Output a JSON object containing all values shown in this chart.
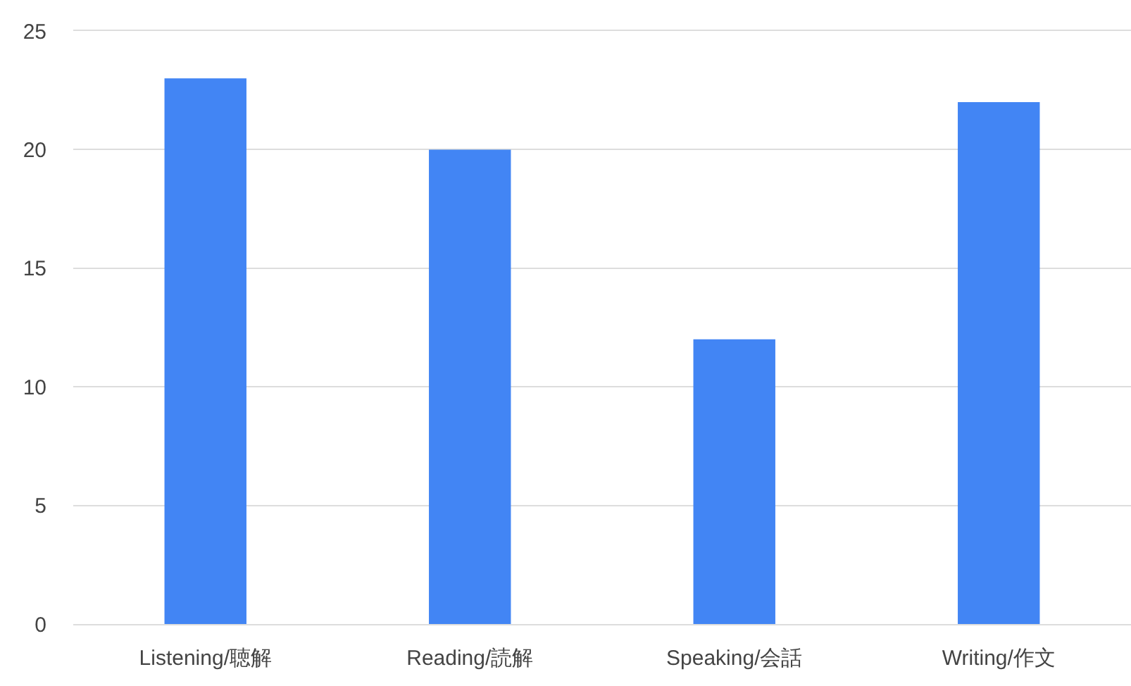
{
  "chart_data": {
    "type": "bar",
    "categories": [
      "Listening/聴解",
      "Reading/読解",
      "Speaking/会話",
      "Writing/作文"
    ],
    "values": [
      23,
      20,
      12,
      22
    ],
    "color": "#4285f4",
    "ylim": [
      0,
      25
    ],
    "yticks": [
      0,
      5,
      10,
      15,
      20,
      25
    ],
    "grid": "y"
  }
}
